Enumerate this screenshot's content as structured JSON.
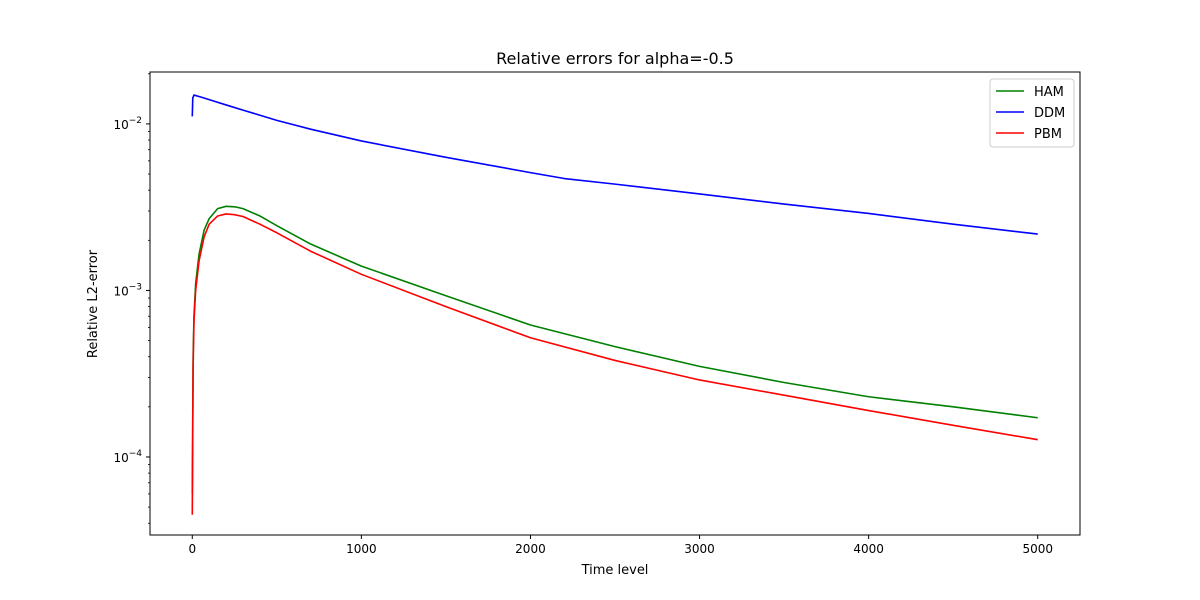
{
  "chart_data": {
    "type": "line",
    "title": "Relative errors for alpha=-0.5",
    "xlabel": "Time level",
    "ylabel": "Relative L2-error",
    "xlim": [
      -250,
      5250
    ],
    "ylim": [
      3.4e-05,
      0.0205
    ],
    "yscale": "log",
    "grid": false,
    "legend_position": "top-right",
    "x_ticks": [
      0,
      1000,
      2000,
      3000,
      4000,
      5000
    ],
    "x_tick_labels": [
      "0",
      "1000",
      "2000",
      "3000",
      "4000",
      "5000"
    ],
    "y_ticks": [
      0.01,
      0.001,
      0.0001
    ],
    "y_tick_labels": [
      {
        "base": "10",
        "exp": "−2"
      },
      {
        "base": "10",
        "exp": "−3"
      },
      {
        "base": "10",
        "exp": "−4"
      }
    ],
    "series": [
      {
        "name": "HAM",
        "color": "#008000",
        "points": [
          [
            0,
            6e-05
          ],
          [
            5,
            0.0004
          ],
          [
            10,
            0.0007
          ],
          [
            20,
            0.0011
          ],
          [
            40,
            0.00165
          ],
          [
            70,
            0.0023
          ],
          [
            100,
            0.0027
          ],
          [
            150,
            0.0031
          ],
          [
            200,
            0.0032
          ],
          [
            250,
            0.00318
          ],
          [
            300,
            0.0031
          ],
          [
            400,
            0.0028
          ],
          [
            500,
            0.00245
          ],
          [
            700,
            0.0019
          ],
          [
            1000,
            0.0014
          ],
          [
            1500,
            0.00093
          ],
          [
            2000,
            0.00062
          ],
          [
            2500,
            0.00046
          ],
          [
            3000,
            0.00035
          ],
          [
            3500,
            0.00028
          ],
          [
            4000,
            0.00023
          ],
          [
            4500,
            0.0002
          ],
          [
            5000,
            0.000172
          ]
        ]
      },
      {
        "name": "DDM",
        "color": "#0000ff",
        "points": [
          [
            0,
            0.0111
          ],
          [
            3,
            0.0143
          ],
          [
            10,
            0.0149
          ],
          [
            50,
            0.0145
          ],
          [
            100,
            0.014
          ],
          [
            200,
            0.013
          ],
          [
            300,
            0.0121
          ],
          [
            500,
            0.0105
          ],
          [
            700,
            0.0093
          ],
          [
            1000,
            0.0079
          ],
          [
            1500,
            0.0063
          ],
          [
            2000,
            0.0051
          ],
          [
            2200,
            0.0047
          ],
          [
            2500,
            0.00435
          ],
          [
            3000,
            0.0038
          ],
          [
            3500,
            0.0033
          ],
          [
            4000,
            0.0029
          ],
          [
            4500,
            0.0025
          ],
          [
            5000,
            0.00218
          ]
        ]
      },
      {
        "name": "PBM",
        "color": "#ff0000",
        "points": [
          [
            0,
            4.5e-05
          ],
          [
            5,
            0.00035
          ],
          [
            10,
            0.00065
          ],
          [
            20,
            0.001
          ],
          [
            40,
            0.0015
          ],
          [
            70,
            0.0021
          ],
          [
            100,
            0.0025
          ],
          [
            150,
            0.0028
          ],
          [
            200,
            0.00288
          ],
          [
            250,
            0.00285
          ],
          [
            300,
            0.00278
          ],
          [
            400,
            0.0025
          ],
          [
            500,
            0.00222
          ],
          [
            700,
            0.00172
          ],
          [
            1000,
            0.00125
          ],
          [
            1500,
            0.0008
          ],
          [
            2000,
            0.00052
          ],
          [
            2500,
            0.00038
          ],
          [
            3000,
            0.00029
          ],
          [
            3500,
            0.000235
          ],
          [
            4000,
            0.00019
          ],
          [
            4500,
            0.000155
          ],
          [
            5000,
            0.000127
          ]
        ]
      }
    ]
  }
}
